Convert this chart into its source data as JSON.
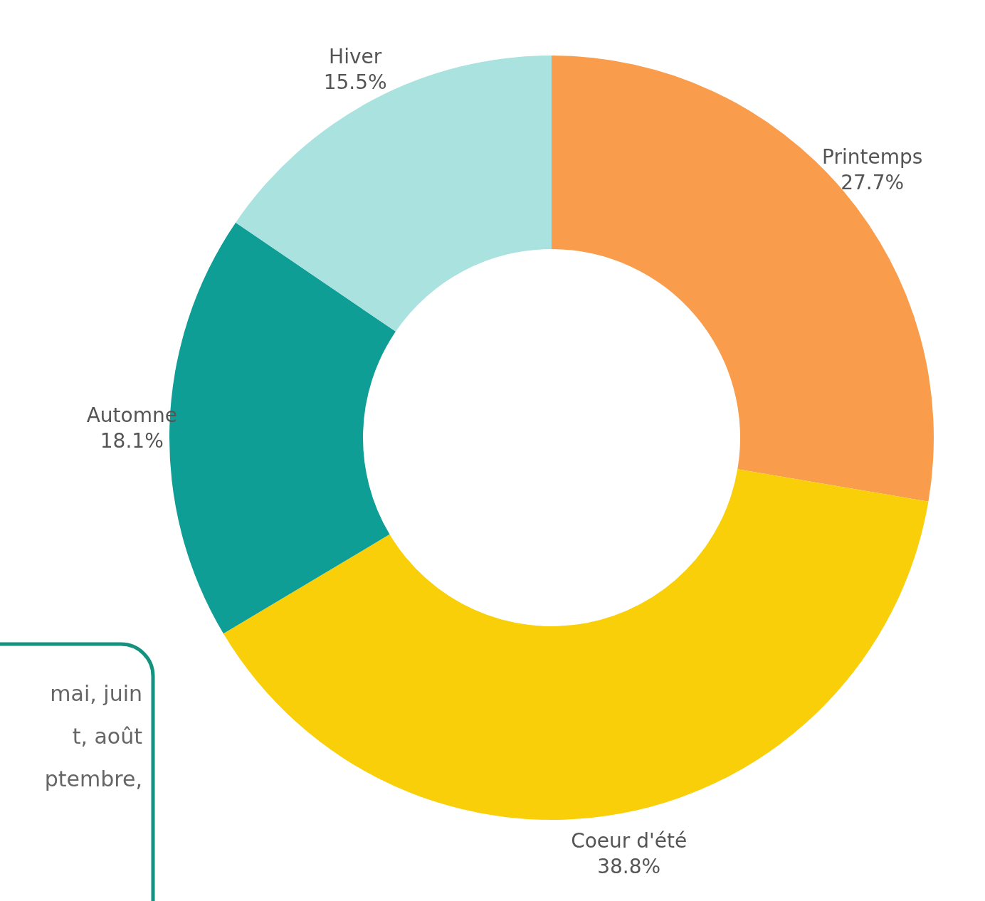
{
  "chart_data": {
    "type": "donut",
    "categories": [
      "Printemps",
      "Coeur d'été",
      "Automne",
      "Hiver"
    ],
    "values": [
      27.7,
      38.8,
      18.1,
      15.5
    ],
    "colors": [
      "#f99d4c",
      "#f9cf0a",
      "#0e9e96",
      "#a9e2df"
    ],
    "value_labels": [
      "27.7%",
      "38.8%",
      "18.1%",
      "15.5%"
    ],
    "annotations": [
      "mai, juin",
      "t, août",
      "ptembre,"
    ]
  }
}
